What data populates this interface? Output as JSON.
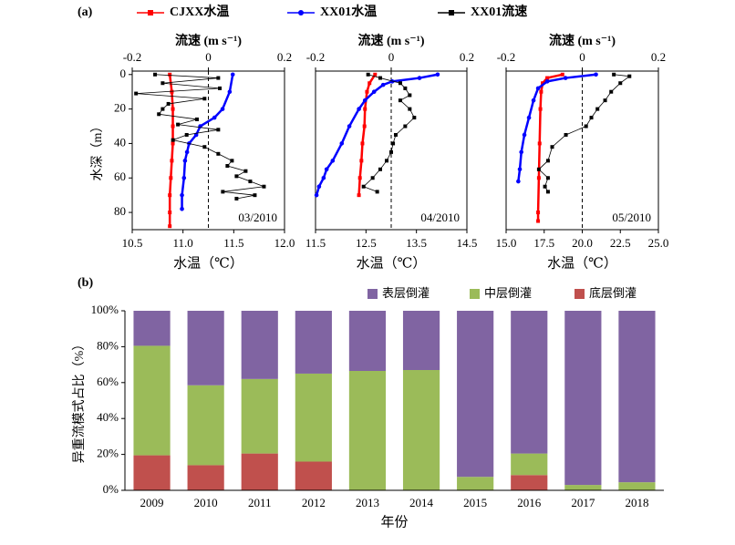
{
  "chart_data": [
    {
      "type": "line",
      "panel": "(a)",
      "annotation": "03/2010",
      "xlabel": "水温（℃）",
      "x2label": "流速 (m s⁻¹)",
      "ylabel": "水深（m）",
      "xlim": [
        10.5,
        12.0
      ],
      "xticks": [
        10.5,
        {
          "value": 11.0,
          "label": "11.0"
        },
        11.5,
        {
          "value": 12.0,
          "label": "12.0"
        }
      ],
      "x2lim": [
        -0.2,
        0.2
      ],
      "x2ticks": [
        -0.2,
        0,
        0.2
      ],
      "reference_x2": 0,
      "ylim": [
        -2,
        90
      ],
      "yticks": [
        0,
        20,
        40,
        60,
        80
      ],
      "series": [
        {
          "name": "CJXX水温",
          "color": "#ff0000",
          "marker": "square",
          "y": [
            0,
            10,
            20,
            30,
            40,
            50,
            60,
            70,
            80,
            88
          ],
          "values": [
            10.87,
            10.89,
            10.9,
            10.9,
            10.9,
            10.89,
            10.88,
            10.87,
            10.87,
            10.87
          ]
        },
        {
          "name": "XX01水温",
          "color": "#0000ff",
          "marker": "circle",
          "y": [
            0,
            10,
            20,
            25,
            30,
            35,
            40,
            45,
            50,
            60,
            70,
            78
          ],
          "values": [
            11.49,
            11.46,
            11.39,
            11.31,
            11.17,
            11.13,
            11.06,
            11.04,
            11.02,
            11.01,
            10.99,
            10.99
          ]
        },
        {
          "name": "XX01流速",
          "color": "#000000",
          "marker": "square",
          "axis": "x2",
          "y": [
            0,
            2,
            5,
            8,
            11,
            14,
            17,
            20,
            23,
            26,
            29,
            32,
            35,
            38,
            42,
            46,
            50,
            53,
            56,
            59,
            62,
            65,
            68,
            70,
            72
          ],
          "values": [
            -0.14,
            0.026,
            -0.12,
            0.03,
            -0.19,
            -0.01,
            -0.105,
            -0.12,
            -0.13,
            -0.03,
            -0.08,
            0.026,
            -0.057,
            -0.093,
            -0.01,
            0.026,
            0.062,
            0.05,
            0.098,
            0.074,
            0.11,
            0.146,
            0.038,
            0.122,
            0.074
          ]
        }
      ]
    },
    {
      "type": "line",
      "annotation": "04/2010",
      "xlabel": "水温（℃）",
      "x2label": "流速 (m s⁻¹)",
      "xlim": [
        11.5,
        14.5
      ],
      "xticks": [
        11.5,
        12.5,
        13.5,
        14.5
      ],
      "x2lim": [
        -0.2,
        0.2
      ],
      "x2ticks": [
        -0.2,
        0,
        0.2
      ],
      "reference_x2": 0,
      "ylim": [
        -2,
        90
      ],
      "series": [
        {
          "name": "CJXX水温",
          "color": "#ff0000",
          "marker": "square",
          "y": [
            0,
            5,
            10,
            20,
            30,
            40,
            50,
            60,
            70
          ],
          "values": [
            12.68,
            12.57,
            12.52,
            12.48,
            12.47,
            12.43,
            12.41,
            12.38,
            12.36
          ]
        },
        {
          "name": "XX01水温",
          "color": "#0000ff",
          "marker": "circle",
          "y": [
            0,
            2,
            4,
            6,
            10,
            15,
            20,
            30,
            40,
            50,
            55,
            60,
            65,
            70
          ],
          "values": [
            13.92,
            13.56,
            13.02,
            12.84,
            12.66,
            12.48,
            12.36,
            12.17,
            12.02,
            11.84,
            11.72,
            11.66,
            11.57,
            11.52
          ]
        },
        {
          "name": "XX01流速",
          "color": "#000000",
          "marker": "square",
          "axis": "x2",
          "y": [
            0,
            2,
            5,
            8,
            12,
            15,
            20,
            25,
            30,
            35,
            40,
            45,
            50,
            55,
            60,
            65,
            68
          ],
          "values": [
            -0.061,
            -0.029,
            0.024,
            0.037,
            0.049,
            0.024,
            0.049,
            0.061,
            0.037,
            0.012,
            0.005,
            0,
            -0.012,
            -0.029,
            -0.049,
            -0.073,
            -0.037
          ]
        }
      ]
    },
    {
      "type": "line",
      "annotation": "05/2010",
      "xlabel": "水温（℃）",
      "x2label": "流速 (m s⁻¹)",
      "xlim": [
        15.0,
        25.0
      ],
      "xticks": [
        {
          "value": 15.0,
          "label": "15.0"
        },
        17.5,
        {
          "value": 20.0,
          "label": "20.0"
        },
        22.5,
        {
          "value": 25.0,
          "label": "25.0"
        }
      ],
      "x2lim": [
        -0.2,
        0.2
      ],
      "x2ticks": [
        -0.2,
        0,
        0.2
      ],
      "reference_x2": 0,
      "ylim": [
        -2,
        90
      ],
      "series": [
        {
          "name": "CJXX水温",
          "color": "#ff0000",
          "marker": "square",
          "y": [
            0,
            2,
            5,
            10,
            20,
            40,
            60,
            80,
            85
          ],
          "values": [
            18.7,
            17.7,
            17.4,
            17.3,
            17.25,
            17.2,
            17.15,
            17.1,
            17.1
          ]
        },
        {
          "name": "XX01水温",
          "color": "#0000ff",
          "marker": "circle",
          "y": [
            0,
            2,
            4,
            8,
            15,
            25,
            35,
            45,
            55,
            62
          ],
          "values": [
            20.9,
            18.9,
            17.7,
            17.1,
            16.8,
            16.5,
            16.2,
            16.0,
            15.9,
            15.8
          ]
        },
        {
          "name": "XX01流速",
          "color": "#000000",
          "marker": "square",
          "axis": "x2",
          "y": [
            0,
            1,
            5,
            10,
            15,
            20,
            25,
            30,
            35,
            42,
            50,
            55,
            60,
            65,
            68
          ],
          "values": [
            0.083,
            0.124,
            0.1,
            0.076,
            0.06,
            0.04,
            0.024,
            0.01,
            -0.043,
            -0.079,
            -0.09,
            -0.114,
            -0.09,
            -0.098,
            -0.09
          ]
        }
      ]
    },
    {
      "type": "bar",
      "stacked": true,
      "panel": "(b)",
      "xlabel": "年份",
      "ylabel": "异重流模式占比（%）",
      "categories": [
        "2009",
        "2010",
        "2011",
        "2012",
        "2013",
        "2014",
        "2015",
        "2016",
        "2017",
        "2018"
      ],
      "ylim": [
        0,
        100
      ],
      "yticks": [
        {
          "value": 0,
          "label": "0%"
        },
        {
          "value": 20,
          "label": "20%"
        },
        {
          "value": 40,
          "label": "40%"
        },
        {
          "value": 60,
          "label": "60%"
        },
        {
          "value": 80,
          "label": "80%"
        },
        {
          "value": 100,
          "label": "100%"
        }
      ],
      "series": [
        {
          "name": "底层倒灌",
          "color": "#c0504d",
          "values": [
            19.5,
            14,
            20.5,
            16,
            0,
            0,
            0,
            8.5,
            0,
            0
          ]
        },
        {
          "name": "中层倒灌",
          "color": "#9bbb59",
          "values": [
            61,
            44.5,
            41.5,
            49,
            66.5,
            67,
            7.5,
            12,
            3,
            4.5
          ]
        },
        {
          "name": "表层倒灌",
          "color": "#8064a2",
          "values": [
            19.5,
            41.5,
            38,
            35,
            33.5,
            33,
            92.5,
            79.5,
            97,
            95.5
          ]
        }
      ]
    }
  ]
}
